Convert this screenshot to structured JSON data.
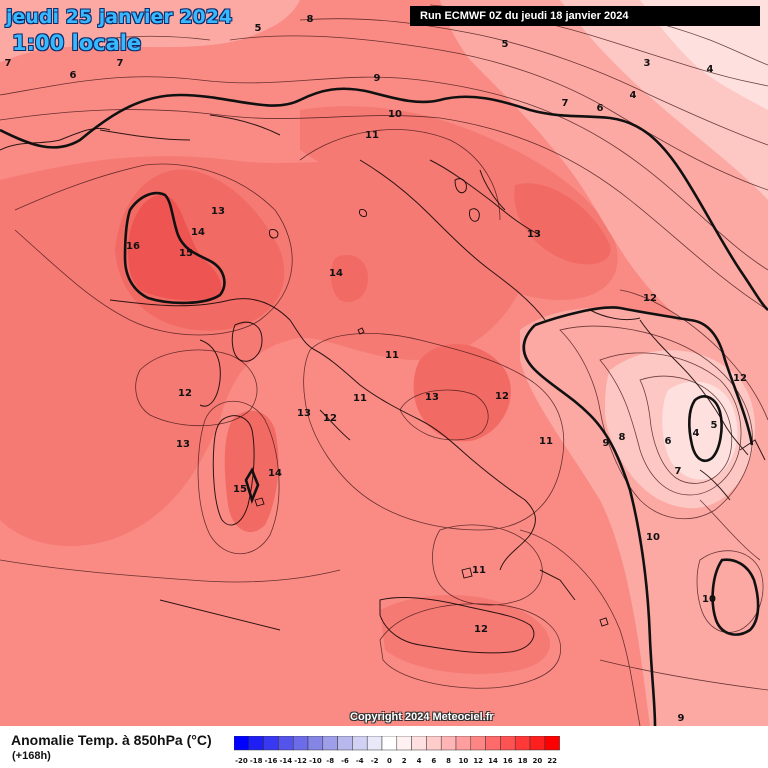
{
  "header": {
    "date": "jeudi 25 janvier 2024",
    "time": "1:00 locale",
    "run": "Run ECMWF 0Z du jeudi 18 janvier 2024"
  },
  "footer": {
    "copyright": "Copyright 2024 Meteociel.fr",
    "variable": "Anomalie Temp. à 850hPa (°C)",
    "lead": "(+168h)"
  },
  "legend": {
    "values": [
      "-20",
      "-18",
      "-16",
      "-14",
      "-12",
      "-10",
      "-8",
      "-6",
      "-4",
      "-2",
      "0",
      "2",
      "4",
      "6",
      "8",
      "10",
      "12",
      "14",
      "16",
      "18",
      "20",
      "22"
    ],
    "colors": [
      "#0000ff",
      "#1f1ff5",
      "#3838f0",
      "#5454ec",
      "#6c6ce9",
      "#8585e6",
      "#9e9ee9",
      "#b8b8ee",
      "#d1d1f3",
      "#e8e8f8",
      "#ffffff",
      "#fff1f1",
      "#ffe0e0",
      "#ffcccc",
      "#ffb5b5",
      "#ff9e9e",
      "#ff8585",
      "#ff6b6b",
      "#ff5252",
      "#ff3838",
      "#ff1f1f",
      "#ff0000"
    ]
  },
  "map": {
    "colors": {
      "base": "#f98b84",
      "warm1": "#f57a74",
      "warm2": "#f26a64",
      "warm3": "#ee5451",
      "cool1": "#fca9a4",
      "cool2": "#fdc7c4",
      "cool3": "#fee0de"
    },
    "contour_labels": [
      "8",
      "7",
      "6",
      "7",
      "5",
      "3",
      "4",
      "4",
      "9",
      "10",
      "11",
      "7",
      "6",
      "5",
      "13",
      "14",
      "15",
      "16",
      "13",
      "14",
      "12",
      "12",
      "12",
      "11",
      "13",
      "11",
      "12",
      "13",
      "11",
      "9",
      "8",
      "6",
      "4",
      "5",
      "7",
      "12",
      "13",
      "14",
      "15",
      "11",
      "12",
      "10",
      "10",
      "9"
    ]
  }
}
